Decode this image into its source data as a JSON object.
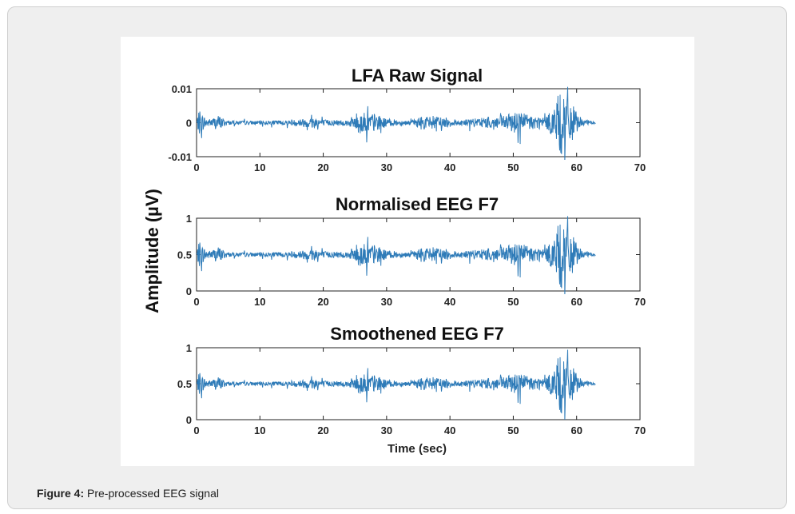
{
  "caption": {
    "label": "Figure 4:",
    "text": "Pre-processed EEG signal"
  },
  "chart_data": [
    {
      "type": "line",
      "title": "LFA Raw Signal",
      "xlim": [
        0,
        70
      ],
      "ylim": [
        -0.01,
        0.01
      ],
      "xticks": [
        "0",
        "10",
        "20",
        "30",
        "40",
        "50",
        "60",
        "70"
      ],
      "yticks": [
        "-0.01",
        "0",
        "0.01"
      ],
      "ytick_values": [
        -0.01,
        0,
        0.01
      ],
      "baseline": 0,
      "scale": 0.0112,
      "line_color": "#2e7bb8"
    },
    {
      "type": "line",
      "title": "Normalised EEG F7",
      "xlim": [
        0,
        70
      ],
      "ylim": [
        0,
        1
      ],
      "xticks": [
        "0",
        "10",
        "20",
        "30",
        "40",
        "50",
        "60",
        "70"
      ],
      "yticks": [
        "0",
        "0.5",
        "1"
      ],
      "ytick_values": [
        0,
        0.5,
        1
      ],
      "baseline": 0.5,
      "scale": 0.56,
      "line_color": "#2e7bb8"
    },
    {
      "type": "line",
      "title": "Smoothened EEG F7",
      "xlim": [
        0,
        70
      ],
      "ylim": [
        0,
        1
      ],
      "xticks": [
        "0",
        "10",
        "20",
        "30",
        "40",
        "50",
        "60",
        "70"
      ],
      "yticks": [
        "0",
        "0.5",
        "1"
      ],
      "ytick_values": [
        0,
        0.5,
        1
      ],
      "baseline": 0.5,
      "scale": 0.5,
      "line_color": "#2e7bb8",
      "xlabel": "Time (sec)"
    }
  ],
  "shared_ylabel": "Amplitude (µV)",
  "signal": {
    "x_end": 63,
    "envelope": [
      [
        0,
        0.08
      ],
      [
        0.5,
        0.35
      ],
      [
        1,
        0.2
      ],
      [
        2,
        0.1
      ],
      [
        3.5,
        0.2
      ],
      [
        5,
        0.05
      ],
      [
        10,
        0.05
      ],
      [
        15,
        0.07
      ],
      [
        17.5,
        0.12
      ],
      [
        19,
        0.2
      ],
      [
        20,
        0.08
      ],
      [
        24,
        0.08
      ],
      [
        25.5,
        0.3
      ],
      [
        28,
        0.25
      ],
      [
        30,
        0.1
      ],
      [
        34,
        0.05
      ],
      [
        35.5,
        0.18
      ],
      [
        39,
        0.15
      ],
      [
        41,
        0.08
      ],
      [
        45,
        0.12
      ],
      [
        48,
        0.18
      ],
      [
        50,
        0.25
      ],
      [
        51,
        0.35
      ],
      [
        52.5,
        0.2
      ],
      [
        55,
        0.15
      ],
      [
        56,
        0.3
      ],
      [
        57,
        0.7
      ],
      [
        57.5,
        1.0
      ],
      [
        58,
        0.6
      ],
      [
        58.5,
        1.0
      ],
      [
        59.3,
        0.5
      ],
      [
        60.5,
        0.1
      ],
      [
        63,
        0.03
      ]
    ]
  }
}
